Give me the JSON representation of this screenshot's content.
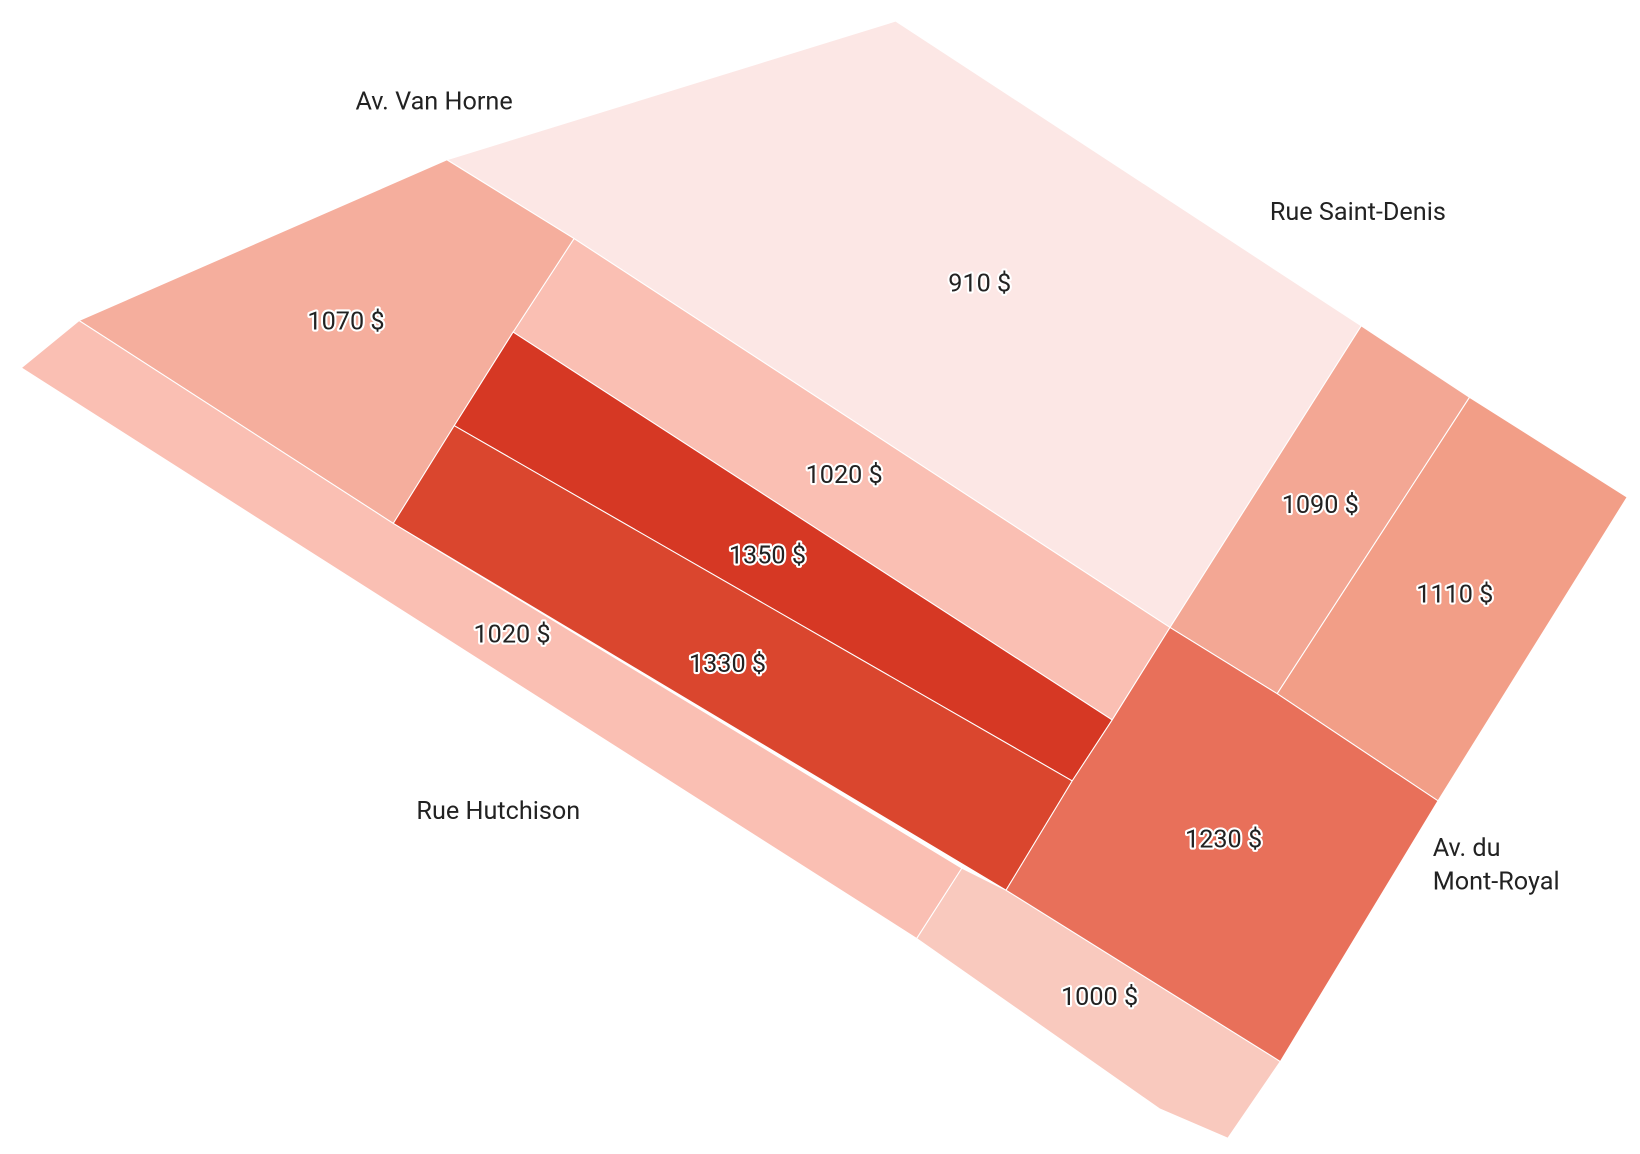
{
  "map": {
    "regions": [
      {
        "label": "910 $",
        "color": "#fce7e5"
      },
      {
        "label": "1020 $",
        "color": "#fabfb3"
      },
      {
        "label": "1070 $",
        "color": "#f5ae9d"
      },
      {
        "label": "1350 $",
        "color": "#d63824"
      },
      {
        "label": "1330 $",
        "color": "#da462e"
      },
      {
        "label": "1020 $",
        "color": "#fabfb3"
      },
      {
        "label": "1000 $",
        "color": "#f9c9be"
      },
      {
        "label": "1090 $",
        "color": "#f3a794"
      },
      {
        "label": "1110 $",
        "color": "#f29e87"
      },
      {
        "label": "1230 $",
        "color": "#e8705a"
      }
    ],
    "streets": [
      "Av. Van Horne",
      "Rue Saint-Denis",
      "Rue Hutchison",
      "Av. du",
      "Mont-Royal"
    ]
  }
}
